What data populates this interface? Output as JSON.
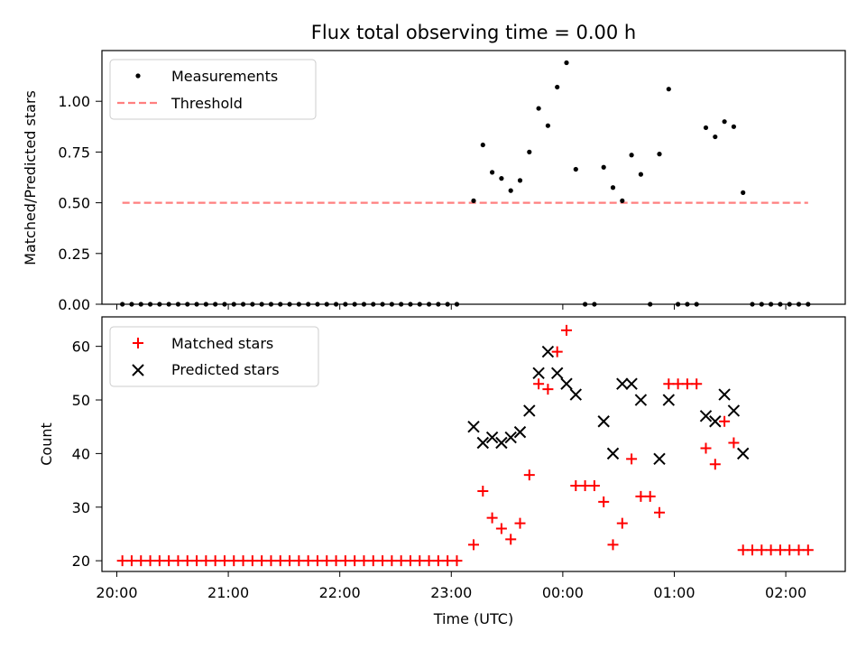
{
  "chart_data": [
    {
      "type": "scatter",
      "title": "Flux total observing time = 0.00 h",
      "xlabel": "",
      "ylabel": "Matched/Predicted stars",
      "xlim": [
        "19:52",
        "02:32"
      ],
      "ylim": [
        0,
        1.25
      ],
      "yticks": [
        "0.00",
        "0.25",
        "0.50",
        "0.75",
        "1.00"
      ],
      "grid": false,
      "legend_position": "top-left",
      "series": [
        {
          "name": "Measurements",
          "color": "#000000",
          "marker": "dot",
          "points": [
            [
              "20:03",
              0.0
            ],
            [
              "20:08",
              0.0
            ],
            [
              "20:13",
              0.0
            ],
            [
              "20:18",
              0.0
            ],
            [
              "20:23",
              0.0
            ],
            [
              "20:28",
              0.0
            ],
            [
              "20:33",
              0.0
            ],
            [
              "20:38",
              0.0
            ],
            [
              "20:43",
              0.0
            ],
            [
              "20:48",
              0.0
            ],
            [
              "20:53",
              0.0
            ],
            [
              "20:58",
              0.0
            ],
            [
              "21:03",
              0.0
            ],
            [
              "21:08",
              0.0
            ],
            [
              "21:13",
              0.0
            ],
            [
              "21:18",
              0.0
            ],
            [
              "21:23",
              0.0
            ],
            [
              "21:28",
              0.0
            ],
            [
              "21:33",
              0.0
            ],
            [
              "21:38",
              0.0
            ],
            [
              "21:43",
              0.0
            ],
            [
              "21:48",
              0.0
            ],
            [
              "21:53",
              0.0
            ],
            [
              "21:58",
              0.0
            ],
            [
              "22:03",
              0.0
            ],
            [
              "22:08",
              0.0
            ],
            [
              "22:13",
              0.0
            ],
            [
              "22:18",
              0.0
            ],
            [
              "22:23",
              0.0
            ],
            [
              "22:28",
              0.0
            ],
            [
              "22:33",
              0.0
            ],
            [
              "22:38",
              0.0
            ],
            [
              "22:43",
              0.0
            ],
            [
              "22:48",
              0.0
            ],
            [
              "22:53",
              0.0
            ],
            [
              "22:58",
              0.0
            ],
            [
              "23:03",
              0.0
            ],
            [
              "23:12",
              0.51
            ],
            [
              "23:17",
              0.785
            ],
            [
              "23:22",
              0.65
            ],
            [
              "23:27",
              0.62
            ],
            [
              "23:32",
              0.56
            ],
            [
              "23:37",
              0.61
            ],
            [
              "23:42",
              0.75
            ],
            [
              "23:47",
              0.965
            ],
            [
              "23:52",
              0.88
            ],
            [
              "23:57",
              1.07
            ],
            [
              "00:02",
              1.19
            ],
            [
              "00:07",
              0.665
            ],
            [
              "00:12",
              0.0
            ],
            [
              "00:17",
              0.0
            ],
            [
              "00:22",
              0.675
            ],
            [
              "00:27",
              0.575
            ],
            [
              "00:32",
              0.51
            ],
            [
              "00:37",
              0.735
            ],
            [
              "00:42",
              0.64
            ],
            [
              "00:47",
              0.0
            ],
            [
              "00:52",
              0.74
            ],
            [
              "00:57",
              1.06
            ],
            [
              "01:02",
              0.0
            ],
            [
              "01:07",
              0.0
            ],
            [
              "01:12",
              0.0
            ],
            [
              "01:17",
              0.87
            ],
            [
              "01:22",
              0.825
            ],
            [
              "01:27",
              0.9
            ],
            [
              "01:32",
              0.875
            ],
            [
              "01:37",
              0.55
            ],
            [
              "01:42",
              0.0
            ],
            [
              "01:47",
              0.0
            ],
            [
              "01:52",
              0.0
            ],
            [
              "01:57",
              0.0
            ],
            [
              "02:02",
              0.0
            ],
            [
              "02:07",
              0.0
            ],
            [
              "02:12",
              0.0
            ]
          ]
        },
        {
          "name": "Threshold",
          "color": "#ff7f7f",
          "marker": "dashed-line",
          "points": [
            [
              "20:03",
              0.5
            ],
            [
              "02:12",
              0.5
            ]
          ]
        }
      ]
    },
    {
      "type": "scatter",
      "title": "",
      "xlabel": "Time (UTC)",
      "ylabel": "Count",
      "xlim": [
        "19:52",
        "02:32"
      ],
      "xticks": [
        "20:00",
        "21:00",
        "22:00",
        "23:00",
        "00:00",
        "01:00",
        "02:00"
      ],
      "ylim": [
        18,
        65.5
      ],
      "yticks": [
        "20",
        "30",
        "40",
        "50",
        "60"
      ],
      "grid": false,
      "legend_position": "top-left",
      "series": [
        {
          "name": "Matched stars",
          "color": "#ff0000",
          "marker": "plus",
          "points": [
            [
              "20:03",
              20
            ],
            [
              "20:08",
              20
            ],
            [
              "20:13",
              20
            ],
            [
              "20:18",
              20
            ],
            [
              "20:23",
              20
            ],
            [
              "20:28",
              20
            ],
            [
              "20:33",
              20
            ],
            [
              "20:38",
              20
            ],
            [
              "20:43",
              20
            ],
            [
              "20:48",
              20
            ],
            [
              "20:53",
              20
            ],
            [
              "20:58",
              20
            ],
            [
              "21:03",
              20
            ],
            [
              "21:08",
              20
            ],
            [
              "21:13",
              20
            ],
            [
              "21:18",
              20
            ],
            [
              "21:23",
              20
            ],
            [
              "21:28",
              20
            ],
            [
              "21:33",
              20
            ],
            [
              "21:38",
              20
            ],
            [
              "21:43",
              20
            ],
            [
              "21:48",
              20
            ],
            [
              "21:53",
              20
            ],
            [
              "21:58",
              20
            ],
            [
              "22:03",
              20
            ],
            [
              "22:08",
              20
            ],
            [
              "22:13",
              20
            ],
            [
              "22:18",
              20
            ],
            [
              "22:23",
              20
            ],
            [
              "22:28",
              20
            ],
            [
              "22:33",
              20
            ],
            [
              "22:38",
              20
            ],
            [
              "22:43",
              20
            ],
            [
              "22:48",
              20
            ],
            [
              "22:53",
              20
            ],
            [
              "22:58",
              20
            ],
            [
              "23:03",
              20
            ],
            [
              "23:12",
              23
            ],
            [
              "23:17",
              33
            ],
            [
              "23:22",
              28
            ],
            [
              "23:27",
              26
            ],
            [
              "23:32",
              24
            ],
            [
              "23:37",
              27
            ],
            [
              "23:42",
              36
            ],
            [
              "23:47",
              53
            ],
            [
              "23:52",
              52
            ],
            [
              "23:57",
              59
            ],
            [
              "00:02",
              63
            ],
            [
              "00:07",
              34
            ],
            [
              "00:12",
              34
            ],
            [
              "00:17",
              34
            ],
            [
              "00:22",
              31
            ],
            [
              "00:27",
              23
            ],
            [
              "00:32",
              27
            ],
            [
              "00:37",
              39
            ],
            [
              "00:42",
              32
            ],
            [
              "00:47",
              32
            ],
            [
              "00:52",
              29
            ],
            [
              "00:57",
              53
            ],
            [
              "01:02",
              53
            ],
            [
              "01:07",
              53
            ],
            [
              "01:12",
              53
            ],
            [
              "01:17",
              41
            ],
            [
              "01:22",
              38
            ],
            [
              "01:27",
              46
            ],
            [
              "01:32",
              42
            ],
            [
              "01:37",
              22
            ],
            [
              "01:42",
              22
            ],
            [
              "01:47",
              22
            ],
            [
              "01:52",
              22
            ],
            [
              "01:57",
              22
            ],
            [
              "02:02",
              22
            ],
            [
              "02:07",
              22
            ],
            [
              "02:12",
              22
            ]
          ]
        },
        {
          "name": "Predicted stars",
          "color": "#000000",
          "marker": "x",
          "points": [
            [
              "23:12",
              45
            ],
            [
              "23:17",
              42
            ],
            [
              "23:22",
              43
            ],
            [
              "23:27",
              42
            ],
            [
              "23:32",
              43
            ],
            [
              "23:37",
              44
            ],
            [
              "23:42",
              48
            ],
            [
              "23:47",
              55
            ],
            [
              "23:52",
              59
            ],
            [
              "23:57",
              55
            ],
            [
              "00:02",
              53
            ],
            [
              "00:07",
              51
            ],
            [
              "00:22",
              46
            ],
            [
              "00:27",
              40
            ],
            [
              "00:32",
              53
            ],
            [
              "00:37",
              53
            ],
            [
              "00:42",
              50
            ],
            [
              "00:52",
              39
            ],
            [
              "00:57",
              50
            ],
            [
              "01:17",
              47
            ],
            [
              "01:22",
              46
            ],
            [
              "01:27",
              51
            ],
            [
              "01:32",
              48
            ],
            [
              "01:37",
              40
            ]
          ]
        }
      ]
    }
  ]
}
